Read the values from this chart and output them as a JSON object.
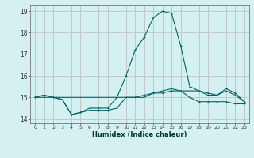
{
  "title": "",
  "xlabel": "Humidex (Indice chaleur)",
  "ylabel": "",
  "bg_color": "#d4f0f0",
  "grid_color": "#c0c8c8",
  "line_color": "#006666",
  "x": [
    0,
    1,
    2,
    3,
    4,
    5,
    6,
    7,
    8,
    9,
    10,
    11,
    12,
    13,
    14,
    15,
    16,
    17,
    18,
    19,
    20,
    21,
    22,
    23
  ],
  "series1": [
    15.0,
    15.1,
    15.0,
    14.9,
    14.2,
    14.3,
    14.4,
    14.4,
    14.4,
    14.5,
    15.0,
    15.0,
    15.1,
    15.2,
    15.2,
    15.3,
    15.3,
    15.0,
    14.8,
    14.8,
    14.8,
    14.8,
    14.7,
    14.7
  ],
  "series2": [
    15.0,
    15.0,
    15.0,
    15.0,
    15.0,
    15.0,
    15.0,
    15.0,
    15.0,
    15.0,
    15.0,
    15.0,
    15.0,
    15.2,
    15.3,
    15.4,
    15.3,
    15.3,
    15.3,
    15.1,
    15.1,
    15.3,
    15.1,
    14.8
  ],
  "series3": [
    15.0,
    15.1,
    15.0,
    14.9,
    14.2,
    14.3,
    14.5,
    14.5,
    14.5,
    15.0,
    16.0,
    17.2,
    17.8,
    18.7,
    19.0,
    18.9,
    17.4,
    15.5,
    15.3,
    15.2,
    15.1,
    15.4,
    15.2,
    14.8
  ],
  "ylim": [
    13.8,
    19.3
  ],
  "yticks": [
    14,
    15,
    16,
    17,
    18,
    19
  ],
  "xlim": [
    -0.5,
    23.5
  ],
  "figsize": [
    3.2,
    2.0
  ],
  "dpi": 100
}
